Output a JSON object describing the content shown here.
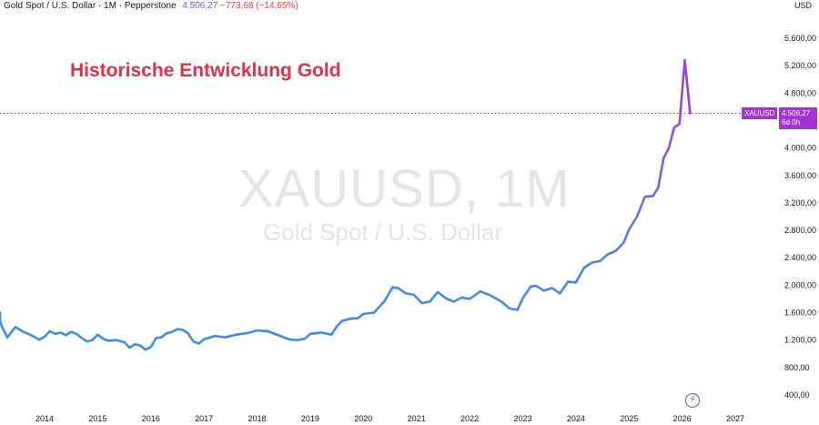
{
  "header": {
    "symbol_desc": "Gold Spot / U.S. Dollar · 1M · Pepperstone",
    "price": "4.506,27",
    "change": "−773,68 (−14,65%)"
  },
  "currency": "USD",
  "annotation_title": "Historische Entwicklung Gold",
  "watermark": {
    "symbol": "XAUUSD, 1M",
    "description": "Gold Spot / U.S. Dollar"
  },
  "last_price_tag": {
    "symbol": "XAUUSD",
    "price": "4.506,27",
    "countdown": "6d 0h"
  },
  "colors": {
    "line_start": "#3c8ee6",
    "line_end": "#a335d6",
    "price_line": "#a335d6",
    "title": "#e0314a"
  },
  "icons": {
    "lightning": "lightning-icon"
  },
  "chart_data": {
    "type": "line",
    "title": "Historische Entwicklung Gold",
    "xlabel": "",
    "ylabel": "",
    "ylim": [
      250,
      5800
    ],
    "xlim": [
      2013.0,
      2027.5
    ],
    "y_ticks": [
      "400,00",
      "800,00",
      "1.200,00",
      "1.600,00",
      "2.000,00",
      "2.400,00",
      "2.800,00",
      "3.200,00",
      "3.600,00",
      "4.000,00",
      "4.400,00",
      "4.800,00",
      "5.200,00",
      "5.600,00"
    ],
    "y_tick_values": [
      400,
      800,
      1200,
      1600,
      2000,
      2400,
      2800,
      3200,
      3600,
      4000,
      4400,
      4800,
      5200,
      5600
    ],
    "x_ticks": [
      "2014",
      "2015",
      "2016",
      "2017",
      "2018",
      "2019",
      "2020",
      "2021",
      "2022",
      "2023",
      "2024",
      "2025",
      "2026",
      "2027"
    ],
    "x_tick_values": [
      2014,
      2015,
      2016,
      2017,
      2018,
      2019,
      2020,
      2021,
      2022,
      2023,
      2024,
      2025,
      2026,
      2027
    ],
    "current_price": 4506.27,
    "series": [
      {
        "x": [
          2013.0,
          2013.1,
          2013.2,
          2013.3,
          2013.45,
          2013.6,
          2013.75,
          2013.9,
          2014.0,
          2014.1,
          2014.2,
          2014.3,
          2014.4,
          2014.5,
          2014.6,
          2014.7,
          2014.8,
          2014.9,
          2015.0,
          2015.1,
          2015.2,
          2015.35,
          2015.5,
          2015.6,
          2015.7,
          2015.8,
          2015.9,
          2016.0,
          2016.1,
          2016.2,
          2016.3,
          2016.4,
          2016.5,
          2016.6,
          2016.7,
          2016.8,
          2016.9,
          2017.0,
          2017.2,
          2017.4,
          2017.6,
          2017.8,
          2018.0,
          2018.2,
          2018.4,
          2018.6,
          2018.75,
          2018.9,
          2019.0,
          2019.2,
          2019.4,
          2019.5,
          2019.6,
          2019.75,
          2019.9,
          2020.0,
          2020.2,
          2020.4,
          2020.55,
          2020.65,
          2020.8,
          2020.95,
          2021.1,
          2021.25,
          2021.4,
          2021.55,
          2021.7,
          2021.85,
          2022.0,
          2022.2,
          2022.4,
          2022.6,
          2022.75,
          2022.9,
          2023.0,
          2023.15,
          2023.25,
          2023.4,
          2023.55,
          2023.7,
          2023.85,
          2024.0,
          2024.15,
          2024.3,
          2024.45,
          2024.6,
          2024.75,
          2024.9,
          2025.0,
          2025.15,
          2025.3,
          2025.45,
          2025.55,
          2025.65,
          2025.75,
          2025.85,
          2025.95,
          2026.05,
          2026.15
        ],
        "y": [
          1600,
          1480,
          1390,
          1240,
          1390,
          1320,
          1270,
          1205,
          1250,
          1330,
          1290,
          1310,
          1270,
          1320,
          1290,
          1230,
          1180,
          1200,
          1280,
          1220,
          1190,
          1200,
          1170,
          1090,
          1140,
          1120,
          1060,
          1100,
          1230,
          1240,
          1300,
          1320,
          1360,
          1350,
          1300,
          1180,
          1150,
          1210,
          1260,
          1240,
          1280,
          1300,
          1340,
          1330,
          1270,
          1210,
          1200,
          1220,
          1290,
          1310,
          1280,
          1400,
          1480,
          1510,
          1520,
          1580,
          1600,
          1770,
          1970,
          1960,
          1880,
          1860,
          1740,
          1760,
          1900,
          1810,
          1760,
          1820,
          1800,
          1910,
          1850,
          1760,
          1660,
          1640,
          1810,
          1980,
          1990,
          1920,
          1960,
          1880,
          2050,
          2040,
          2250,
          2330,
          2350,
          2450,
          2500,
          2620,
          2810,
          3000,
          3290,
          3300,
          3420,
          3850,
          4000,
          4300,
          4350,
          5280,
          4506.27
        ]
      }
    ]
  }
}
